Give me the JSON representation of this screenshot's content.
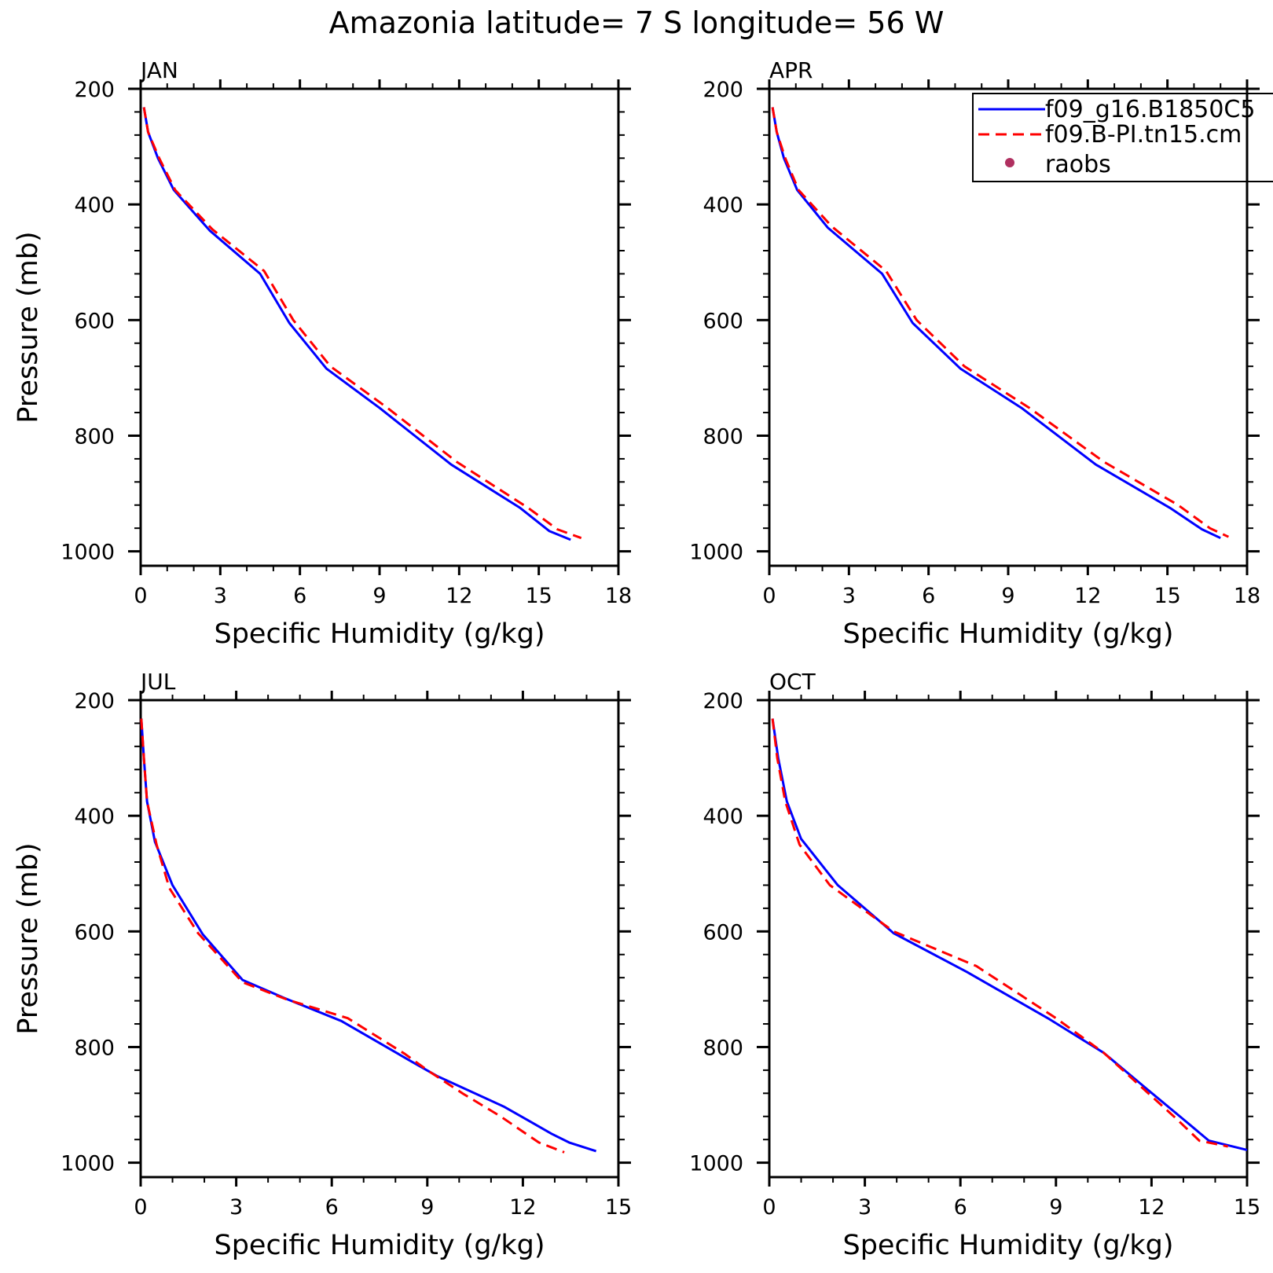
{
  "title": "Amazonia  latitude= 7 S longitude= 56 W",
  "legend": {
    "entries": [
      {
        "label": "f09_g16.B1850C5",
        "color": "#0000ff",
        "style": "solid"
      },
      {
        "label": "f09.B-PI.tn15.cm",
        "color": "#ff0000",
        "style": "dashed"
      },
      {
        "label": "raobs",
        "color": "#b03060",
        "style": "dot"
      }
    ]
  },
  "chart_data": [
    {
      "type": "line",
      "panel_title": "JAN",
      "xlabel": "Specific Humidity (g/kg)",
      "ylabel": "Pressure (mb)",
      "xlim": [
        0,
        18
      ],
      "ylim": [
        200,
        1025
      ],
      "y_inverted": true,
      "xticks": [
        "0",
        "3",
        "6",
        "9",
        "12",
        "15",
        "18"
      ],
      "yticks": [
        "200",
        "400",
        "600",
        "800",
        "1000"
      ],
      "series": [
        {
          "name": "f09_g16.B1850C5",
          "color": "#0000ff",
          "style": "solid",
          "points": [
            [
              0.12,
              232
            ],
            [
              0.28,
              275
            ],
            [
              0.65,
              320
            ],
            [
              1.25,
              375
            ],
            [
              2.6,
              445
            ],
            [
              4.5,
              520
            ],
            [
              5.6,
              605
            ],
            [
              7.0,
              684
            ],
            [
              9.0,
              752
            ],
            [
              11.7,
              850
            ],
            [
              14.3,
              925
            ],
            [
              15.4,
              965
            ],
            [
              16.2,
              980
            ]
          ]
        },
        {
          "name": "f09.B-PI.tn15.cm",
          "color": "#ff0000",
          "style": "dashed",
          "points": [
            [
              0.12,
              232
            ],
            [
              0.28,
              275
            ],
            [
              0.7,
              320
            ],
            [
              1.3,
              375
            ],
            [
              2.7,
              443
            ],
            [
              4.65,
              515
            ],
            [
              5.75,
              600
            ],
            [
              7.15,
              680
            ],
            [
              9.3,
              752
            ],
            [
              11.9,
              845
            ],
            [
              14.6,
              925
            ],
            [
              15.7,
              962
            ],
            [
              16.6,
              977
            ]
          ]
        }
      ]
    },
    {
      "type": "line",
      "panel_title": "APR",
      "xlabel": "Specific Humidity (g/kg)",
      "ylabel": "Pressure (mb)",
      "xlim": [
        0,
        18
      ],
      "ylim": [
        200,
        1025
      ],
      "y_inverted": true,
      "xticks": [
        "0",
        "3",
        "6",
        "9",
        "12",
        "15",
        "18"
      ],
      "yticks": [
        "200",
        "400",
        "600",
        "800",
        "1000"
      ],
      "series": [
        {
          "name": "f09_g16.B1850C5",
          "color": "#0000ff",
          "style": "solid",
          "points": [
            [
              0.12,
              232
            ],
            [
              0.28,
              275
            ],
            [
              0.55,
              320
            ],
            [
              1.05,
              375
            ],
            [
              2.2,
              440
            ],
            [
              4.25,
              520
            ],
            [
              5.4,
              605
            ],
            [
              7.2,
              684
            ],
            [
              9.5,
              752
            ],
            [
              12.3,
              850
            ],
            [
              15.1,
              925
            ],
            [
              16.3,
              962
            ],
            [
              17.0,
              977
            ]
          ]
        },
        {
          "name": "f09.B-PI.tn15.cm",
          "color": "#ff0000",
          "style": "dashed",
          "points": [
            [
              0.12,
              232
            ],
            [
              0.28,
              275
            ],
            [
              0.6,
              320
            ],
            [
              1.1,
              375
            ],
            [
              2.35,
              438
            ],
            [
              4.4,
              515
            ],
            [
              5.55,
              600
            ],
            [
              7.35,
              680
            ],
            [
              9.8,
              752
            ],
            [
              12.6,
              845
            ],
            [
              15.4,
              920
            ],
            [
              16.6,
              960
            ],
            [
              17.3,
              975
            ]
          ]
        }
      ]
    },
    {
      "type": "line",
      "panel_title": "JUL",
      "xlabel": "Specific Humidity (g/kg)",
      "ylabel": "Pressure (mb)",
      "xlim": [
        0,
        15
      ],
      "ylim": [
        200,
        1025
      ],
      "y_inverted": true,
      "xticks": [
        "0",
        "3",
        "6",
        "9",
        "12",
        "15"
      ],
      "yticks": [
        "200",
        "400",
        "600",
        "800",
        "1000"
      ],
      "series": [
        {
          "name": "f09_g16.B1850C5",
          "color": "#0000ff",
          "style": "solid",
          "points": [
            [
              0.02,
              232
            ],
            [
              0.1,
              300
            ],
            [
              0.2,
              375
            ],
            [
              0.45,
              445
            ],
            [
              1.0,
              520
            ],
            [
              1.95,
              605
            ],
            [
              3.2,
              684
            ],
            [
              4.5,
              715
            ],
            [
              6.3,
              755
            ],
            [
              8.5,
              825
            ],
            [
              9.3,
              850
            ],
            [
              11.4,
              903
            ],
            [
              12.2,
              928
            ],
            [
              12.9,
              950
            ],
            [
              13.45,
              965
            ],
            [
              14.3,
              980
            ]
          ]
        },
        {
          "name": "f09.B-PI.tn15.cm",
          "color": "#ff0000",
          "style": "dashed",
          "points": [
            [
              0.02,
              232
            ],
            [
              0.1,
              300
            ],
            [
              0.2,
              375
            ],
            [
              0.5,
              450
            ],
            [
              0.9,
              525
            ],
            [
              1.8,
              603
            ],
            [
              3.2,
              688
            ],
            [
              4.6,
              718
            ],
            [
              6.5,
              750
            ],
            [
              8.3,
              812
            ],
            [
              9.0,
              840
            ],
            [
              10.1,
              880
            ],
            [
              11.3,
              920
            ],
            [
              12.5,
              965
            ],
            [
              13.3,
              982
            ]
          ]
        }
      ]
    },
    {
      "type": "line",
      "panel_title": "OCT",
      "xlabel": "Specific Humidity (g/kg)",
      "ylabel": "Pressure (mb)",
      "xlim": [
        0,
        15
      ],
      "ylim": [
        200,
        1025
      ],
      "y_inverted": true,
      "xticks": [
        "0",
        "3",
        "6",
        "9",
        "12",
        "15"
      ],
      "yticks": [
        "200",
        "400",
        "600",
        "800",
        "1000"
      ],
      "series": [
        {
          "name": "f09_g16.B1850C5",
          "color": "#0000ff",
          "style": "solid",
          "points": [
            [
              0.1,
              232
            ],
            [
              0.28,
              300
            ],
            [
              0.55,
              375
            ],
            [
              1.0,
              440
            ],
            [
              2.15,
              520
            ],
            [
              3.9,
              603
            ],
            [
              6.2,
              670
            ],
            [
              8.8,
              752
            ],
            [
              10.5,
              810
            ],
            [
              11.8,
              870
            ],
            [
              13.0,
              925
            ],
            [
              13.8,
              962
            ],
            [
              15.0,
              978
            ]
          ]
        },
        {
          "name": "f09.B-PI.tn15.cm",
          "color": "#ff0000",
          "style": "dashed",
          "points": [
            [
              0.1,
              232
            ],
            [
              0.25,
              300
            ],
            [
              0.5,
              375
            ],
            [
              0.95,
              450
            ],
            [
              1.9,
              520
            ],
            [
              3.9,
              600
            ],
            [
              6.5,
              660
            ],
            [
              9.0,
              750
            ],
            [
              10.5,
              810
            ],
            [
              11.8,
              875
            ],
            [
              12.8,
              925
            ],
            [
              13.5,
              962
            ],
            [
              14.4,
              972
            ]
          ]
        }
      ]
    }
  ]
}
